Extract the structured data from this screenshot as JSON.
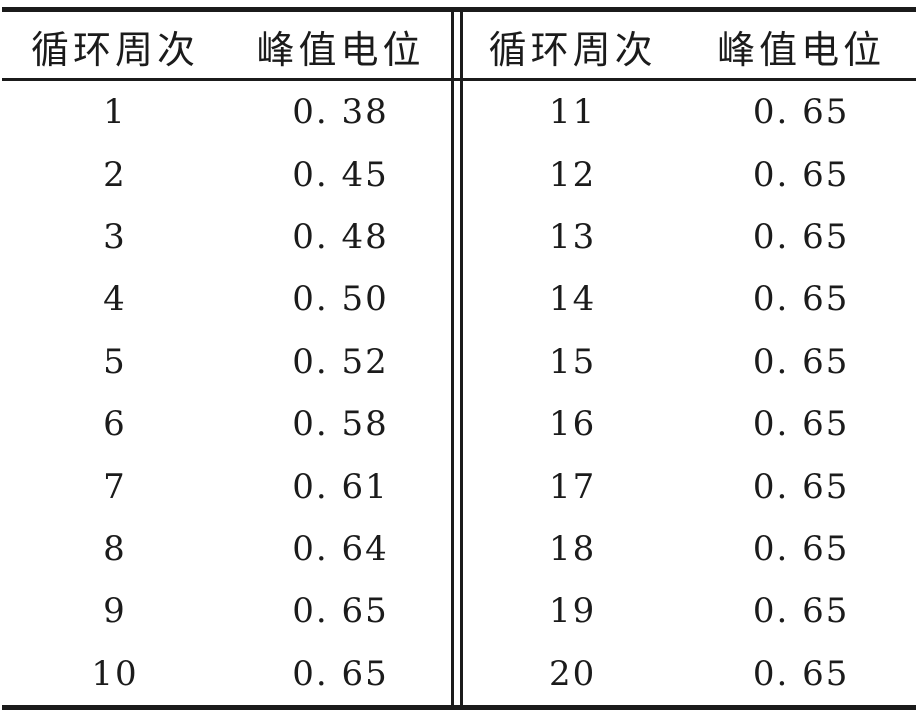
{
  "colors": {
    "ink": "#1b1b1b",
    "paper": "#ffffff"
  },
  "table": {
    "headers": {
      "cycle": "循环周次",
      "value": "峰值电位"
    },
    "left_rows": [
      {
        "cycle": "1",
        "value": "0. 38"
      },
      {
        "cycle": "2",
        "value": "0. 45"
      },
      {
        "cycle": "3",
        "value": "0. 48"
      },
      {
        "cycle": "4",
        "value": "0. 50"
      },
      {
        "cycle": "5",
        "value": "0. 52"
      },
      {
        "cycle": "6",
        "value": "0. 58"
      },
      {
        "cycle": "7",
        "value": "0. 61"
      },
      {
        "cycle": "8",
        "value": "0. 64"
      },
      {
        "cycle": "9",
        "value": "0. 65"
      },
      {
        "cycle": "10",
        "value": "0. 65"
      }
    ],
    "right_rows": [
      {
        "cycle": "11",
        "value": "0. 65"
      },
      {
        "cycle": "12",
        "value": "0. 65"
      },
      {
        "cycle": "13",
        "value": "0. 65"
      },
      {
        "cycle": "14",
        "value": "0. 65"
      },
      {
        "cycle": "15",
        "value": "0. 65"
      },
      {
        "cycle": "16",
        "value": "0. 65"
      },
      {
        "cycle": "17",
        "value": "0. 65"
      },
      {
        "cycle": "18",
        "value": "0. 65"
      },
      {
        "cycle": "19",
        "value": "0. 65"
      },
      {
        "cycle": "20",
        "value": "0. 65"
      }
    ]
  },
  "chart_data": {
    "type": "table",
    "columns": [
      "循环周次",
      "峰值电位"
    ],
    "rows": [
      [
        1,
        0.38
      ],
      [
        2,
        0.45
      ],
      [
        3,
        0.48
      ],
      [
        4,
        0.5
      ],
      [
        5,
        0.52
      ],
      [
        6,
        0.58
      ],
      [
        7,
        0.61
      ],
      [
        8,
        0.64
      ],
      [
        9,
        0.65
      ],
      [
        10,
        0.65
      ],
      [
        11,
        0.65
      ],
      [
        12,
        0.65
      ],
      [
        13,
        0.65
      ],
      [
        14,
        0.65
      ],
      [
        15,
        0.65
      ],
      [
        16,
        0.65
      ],
      [
        17,
        0.65
      ],
      [
        18,
        0.65
      ],
      [
        19,
        0.65
      ],
      [
        20,
        0.65
      ]
    ],
    "layout": {
      "two_panel": true,
      "panel_split": "rows 1-10 in left panel, rows 11-20 in right panel",
      "grid": "top rule, header rule and bottom rule horizontal; double vertical rule between panels"
    }
  }
}
